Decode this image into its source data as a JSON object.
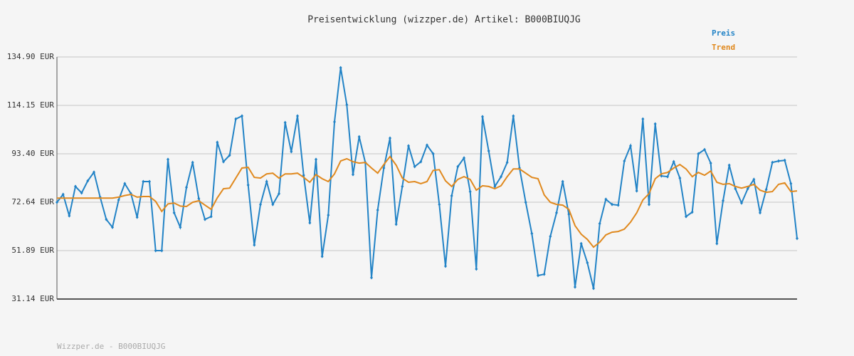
{
  "chart_data": {
    "type": "line",
    "title": "Preisentwicklung (wizzper.de) Artikel: B000BIUQJG",
    "footer": "Wizzper.de - B000BIUQJG",
    "ylim": [
      31.14,
      134.9
    ],
    "yticks": [
      {
        "value": 31.14,
        "label": "31.14 EUR"
      },
      {
        "value": 51.89,
        "label": "51.89 EUR"
      },
      {
        "value": 72.64,
        "label": "72.64 EUR"
      },
      {
        "value": 93.4,
        "label": "93.40 EUR"
      },
      {
        "value": 114.15,
        "label": "114.15 EUR"
      },
      {
        "value": 134.9,
        "label": "134.90 EUR"
      }
    ],
    "grid": true,
    "legend": "top-right",
    "series": [
      {
        "name": "Preis",
        "color": "#2283c6",
        "markers": true,
        "values": [
          72.6,
          76.0,
          66.8,
          79.4,
          76.6,
          81.8,
          85.5,
          74.8,
          65.3,
          61.9,
          73.6,
          80.6,
          76.3,
          66.2,
          81.5,
          81.5,
          51.9,
          51.9,
          91.0,
          68.1,
          61.9,
          79.0,
          89.7,
          74.2,
          65.3,
          66.5,
          98.3,
          90.0,
          92.8,
          108.3,
          109.6,
          80.0,
          54.3,
          71.7,
          81.5,
          71.7,
          76.3,
          106.8,
          94.3,
          109.6,
          84.2,
          63.8,
          91.0,
          49.4,
          67.1,
          107.1,
          130.3,
          114.4,
          84.5,
          100.7,
          89.7,
          40.3,
          69.3,
          87.3,
          100.1,
          63.2,
          79.4,
          96.8,
          87.9,
          90.0,
          97.1,
          93.4,
          71.7,
          45.2,
          75.4,
          87.9,
          91.6,
          77.2,
          44.0,
          109.3,
          94.6,
          79.4,
          83.6,
          89.7,
          109.6,
          87.3,
          72.6,
          59.2,
          41.2,
          41.8,
          58.0,
          68.1,
          81.5,
          67.5,
          36.3,
          54.9,
          46.7,
          35.7,
          63.5,
          73.9,
          71.7,
          71.4,
          90.3,
          96.8,
          77.5,
          108.3,
          71.7,
          106.2,
          83.9,
          83.6,
          90.0,
          83.0,
          66.5,
          68.4,
          93.4,
          95.2,
          89.4,
          54.9,
          73.3,
          88.5,
          78.4,
          72.3,
          78.4,
          82.4,
          68.1,
          78.1,
          89.7,
          90.3,
          90.6,
          80.6,
          57.1
        ]
      },
      {
        "name": "Trend",
        "color": "#e0891e",
        "markers": false,
        "values": [
          74.4,
          74.4,
          74.4,
          74.4,
          74.4,
          74.4,
          74.4,
          74.4,
          74.4,
          74.4,
          74.8,
          75.5,
          76.0,
          74.8,
          75.1,
          75.1,
          73.0,
          68.7,
          71.9,
          72.3,
          71.0,
          70.8,
          72.6,
          73.3,
          71.4,
          69.6,
          74.5,
          78.4,
          78.7,
          83.0,
          87.3,
          87.6,
          83.3,
          83.0,
          84.8,
          85.1,
          83.0,
          84.8,
          84.8,
          85.1,
          83.3,
          81.2,
          84.5,
          82.7,
          81.5,
          84.8,
          90.3,
          91.3,
          90.0,
          89.4,
          89.7,
          87.3,
          85.1,
          88.8,
          92.2,
          88.5,
          83.0,
          81.2,
          81.5,
          80.6,
          81.5,
          86.3,
          86.6,
          81.8,
          79.4,
          82.4,
          83.6,
          82.4,
          77.8,
          79.7,
          79.4,
          78.4,
          79.7,
          83.6,
          86.9,
          86.9,
          85.1,
          83.3,
          82.7,
          75.8,
          72.6,
          71.7,
          71.4,
          69.6,
          62.6,
          58.9,
          56.7,
          53.4,
          55.5,
          58.6,
          59.8,
          60.1,
          61.1,
          64.1,
          68.1,
          73.6,
          76.3,
          82.7,
          84.8,
          85.4,
          87.3,
          88.8,
          86.9,
          83.6,
          85.4,
          84.2,
          86.0,
          81.2,
          80.3,
          80.6,
          79.4,
          78.7,
          79.4,
          80.3,
          77.8,
          76.9,
          77.2,
          80.3,
          80.9,
          77.2,
          77.5
        ]
      }
    ]
  }
}
